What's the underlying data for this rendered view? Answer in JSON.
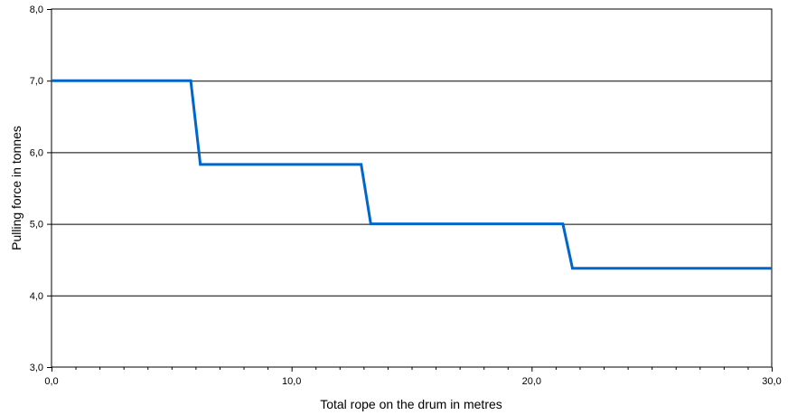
{
  "chart_data": {
    "type": "line",
    "title": "",
    "xlabel": "Total rope on the drum in metres",
    "ylabel": "Pulling force in tonnes",
    "xlim": [
      0,
      30
    ],
    "ylim": [
      3,
      8
    ],
    "x_ticks": [
      0,
      10,
      20,
      30
    ],
    "y_ticks": [
      3,
      4,
      5,
      6,
      7,
      8
    ],
    "x_tick_labels": [
      "0,0",
      "10,0",
      "20,0",
      "30,0"
    ],
    "y_tick_labels": [
      "3,0",
      "4,0",
      "5,0",
      "6,0",
      "7,0",
      "8,0"
    ],
    "grid": "horizontal",
    "legend": "none",
    "series": [
      {
        "color": "#0066CC",
        "x": [
          0,
          5.8,
          6.2,
          12.9,
          13.3,
          21.3,
          21.7,
          30
        ],
        "y": [
          7.0,
          7.0,
          5.83,
          5.83,
          5.0,
          5.0,
          4.38,
          4.38
        ]
      }
    ]
  }
}
